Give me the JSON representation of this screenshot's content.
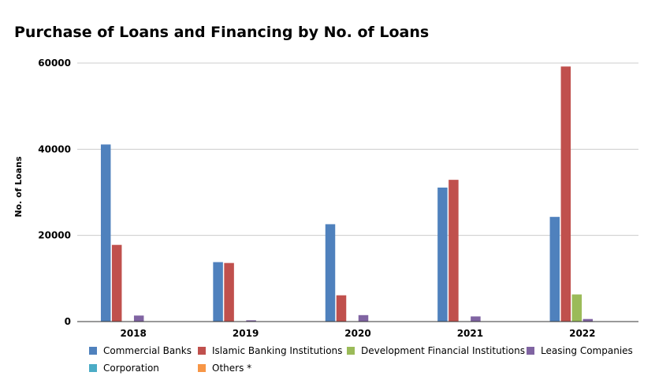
{
  "chart_data": {
    "type": "bar",
    "title": "Purchase of Loans and Financing by No. of Loans",
    "xlabel": "",
    "ylabel": "No. of Loans",
    "categories": [
      "2018",
      "2019",
      "2020",
      "2021",
      "2022"
    ],
    "ylim": [
      0,
      60000
    ],
    "yticks": [
      0,
      20000,
      40000,
      60000
    ],
    "grid": true,
    "legend_position": "bottom",
    "series": [
      {
        "name": "Commercial Banks",
        "color": "#4f81bd",
        "values": [
          41100,
          13800,
          22600,
          31100,
          24300
        ]
      },
      {
        "name": "Islamic Banking Institutions",
        "color": "#c0504d",
        "values": [
          17800,
          13600,
          6100,
          32900,
          59200
        ]
      },
      {
        "name": "Development Financial Institutions",
        "color": "#9bbb59",
        "values": [
          0,
          0,
          0,
          0,
          6300
        ]
      },
      {
        "name": "Leasing Companies",
        "color": "#8064a2",
        "values": [
          1400,
          300,
          1500,
          1200,
          600
        ]
      },
      {
        "name": "Corporation",
        "color": "#4bacc6",
        "values": [
          0,
          0,
          0,
          0,
          0
        ]
      },
      {
        "name": "Others *",
        "color": "#f79646",
        "values": [
          0,
          0,
          0,
          0,
          0
        ]
      }
    ]
  }
}
